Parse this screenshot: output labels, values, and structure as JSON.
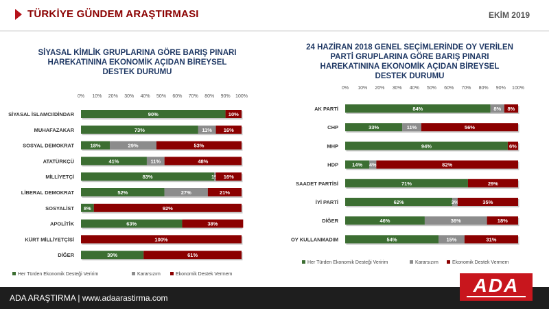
{
  "header": {
    "title": "TÜRKİYE GÜNDEM ARAŞTIRMASI",
    "date": "EKİM 2019"
  },
  "footer": {
    "text": "ADA ARAŞTIRMA |   www.adaarastirma.com",
    "logo": "ADA"
  },
  "colors": {
    "support": "#3c6e32",
    "undecided": "#8c8c8c",
    "oppose": "#8b0000",
    "title": "#1f3864",
    "accent": "#b5121b"
  },
  "chart_data": [
    {
      "type": "bar",
      "orientation": "horizontal",
      "stacked": true,
      "title": "SİYASAL KİMLİK GRUPLARINA GÖRE BARIŞ PINARI HAREKATININA EKONOMİK AÇIDAN BİREYSEL DESTEK DURUMU",
      "title_lines": [
        "SİYASAL KİMLİK GRUPLARINA GÖRE BARIŞ PINARI",
        "HAREKATININA EKONOMİK AÇIDAN BİREYSEL",
        "DESTEK DURUMU"
      ],
      "x_ticks": [
        "0%",
        "10%",
        "20%",
        "30%",
        "40%",
        "50%",
        "60%",
        "70%",
        "80%",
        "90%",
        "100%"
      ],
      "xlim": [
        0,
        100
      ],
      "categories": [
        "SİYASAL İSLAMCI/DİNDAR",
        "MUHAFAZAKAR",
        "SOSYAL DEMOKRAT",
        "ATATÜRKÇÜ",
        "MİLLİYETÇİ",
        "LİBERAL DEMOKRAT",
        "SOSYALİST",
        "APOLİTİK",
        "KÜRT MİLLİYETÇİSİ",
        "DİĞER"
      ],
      "series": [
        {
          "name": "Her Türden Ekonomik Desteği Veririm",
          "values": [
            90,
            73,
            18,
            41,
            83,
            52,
            8,
            63,
            0,
            39
          ],
          "labels": [
            "90%",
            "73%",
            "18%",
            "41%",
            "83%",
            "52%",
            "8%",
            "63%",
            "",
            "39%"
          ]
        },
        {
          "name": "Kararsızım",
          "values": [
            0,
            11,
            29,
            11,
            1,
            27,
            0,
            0,
            0,
            0
          ],
          "labels": [
            "",
            "11%",
            "29%",
            "11%",
            "1%",
            "27%",
            "",
            "",
            "",
            ""
          ]
        },
        {
          "name": "Ekonomik Destek Vermem",
          "values": [
            10,
            16,
            53,
            48,
            16,
            21,
            92,
            38,
            100,
            61
          ],
          "labels": [
            "10%",
            "16%",
            "53%",
            "48%",
            "16%",
            "21%",
            "92%",
            "38%",
            "100%",
            "61%"
          ]
        }
      ],
      "legend_position": "bottom",
      "legend": [
        "Her Türden Ekonomik Desteği Veririm",
        "Kararsızım",
        "Ekonomik Destek Vermem"
      ]
    },
    {
      "type": "bar",
      "orientation": "horizontal",
      "stacked": true,
      "title": "24 HAZİRAN 2018 GENEL SEÇİMLERİNDE OY VERİLEN PARTİ GRUPLARINA GÖRE BARIŞ PINARI HAREKATININA EKONOMİK AÇIDAN BİREYSEL DESTEK DURUMU",
      "title_lines": [
        "24 HAZİRAN 2018 GENEL SEÇİMLERİNDE OY VERİLEN",
        "PARTİ GRUPLARINA GÖRE BARIŞ PINARI",
        "HAREKATININA EKONOMİK AÇIDAN BİREYSEL",
        "DESTEK DURUMU"
      ],
      "x_ticks": [
        "0%",
        "10%",
        "20%",
        "30%",
        "40%",
        "50%",
        "60%",
        "70%",
        "80%",
        "90%",
        "100%"
      ],
      "xlim": [
        0,
        100
      ],
      "categories": [
        "AK PARTİ",
        "CHP",
        "MHP",
        "HDP",
        "SAADET PARTİSİ",
        "İYİ PARTİ",
        "DİĞER",
        "OY KULLANMADIM"
      ],
      "series": [
        {
          "name": "Her Türden Ekonomik Desteği Veririm",
          "values": [
            84,
            33,
            94,
            14,
            71,
            62,
            46,
            54
          ],
          "labels": [
            "84%",
            "33%",
            "94%",
            "14%",
            "71%",
            "62%",
            "46%",
            "54%"
          ]
        },
        {
          "name": "Kararsızım",
          "values": [
            8,
            11,
            0,
            4,
            0,
            3,
            36,
            15
          ],
          "labels": [
            "8%",
            "11%",
            "",
            "4%",
            "",
            "3%",
            "36%",
            "15%"
          ]
        },
        {
          "name": "Ekonomik Destek Vermem",
          "values": [
            8,
            56,
            6,
            82,
            29,
            35,
            18,
            31
          ],
          "labels": [
            "8%",
            "56%",
            "6%",
            "82%",
            "29%",
            "35%",
            "18%",
            "31%"
          ]
        }
      ],
      "legend_position": "bottom",
      "legend": [
        "Her Türden Ekonomik Desteği Veririm",
        "Kararsızım",
        "Ekonomik Destek Vermem"
      ]
    }
  ]
}
